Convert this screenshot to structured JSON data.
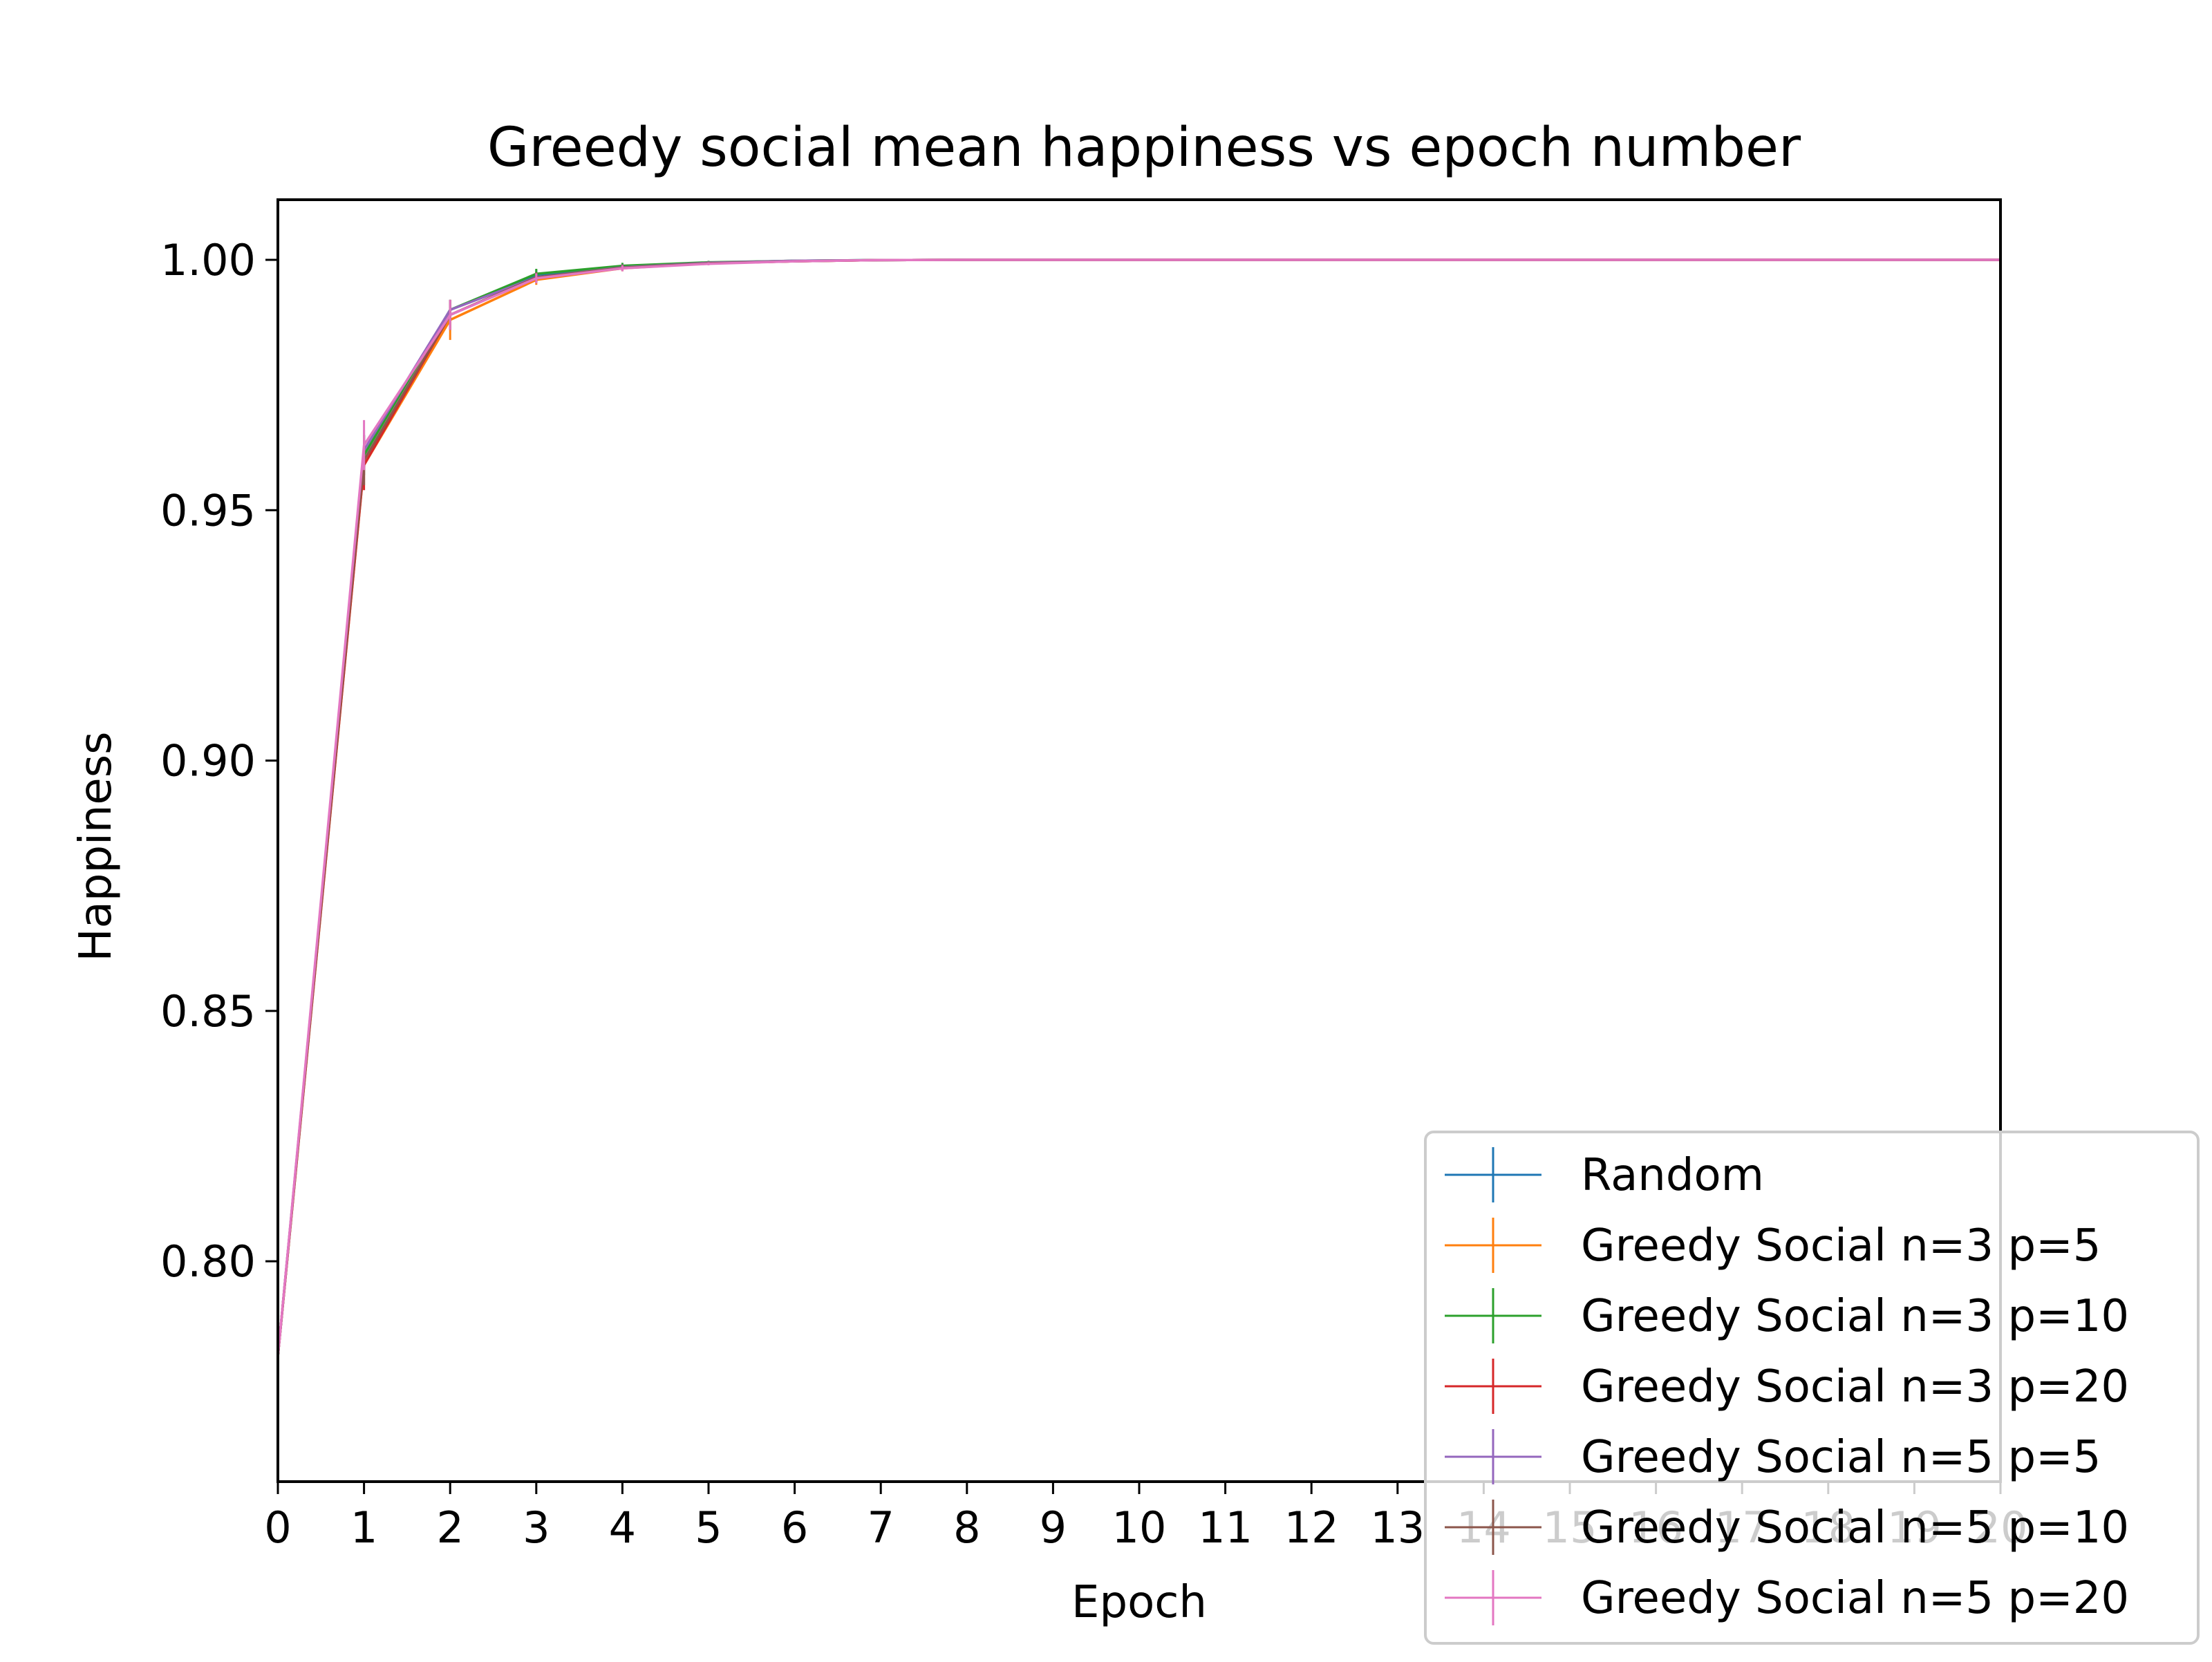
{
  "chart_data": {
    "type": "line",
    "title": "Greedy social mean happiness vs epoch number",
    "xlabel": "Epoch",
    "ylabel": "Happiness",
    "xlim": [
      0,
      20
    ],
    "ylim": [
      0.756,
      1.012
    ],
    "x_ticks": [
      "0",
      "1",
      "2",
      "3",
      "4",
      "5",
      "6",
      "7",
      "8",
      "9",
      "10",
      "11",
      "12",
      "13",
      "14",
      "15",
      "16",
      "17",
      "18",
      "19",
      "20"
    ],
    "y_ticks": [
      "0.80",
      "0.85",
      "0.90",
      "0.95",
      "1.00"
    ],
    "grid": false,
    "legend_position": "bottom-right",
    "x": [
      0,
      1,
      2,
      3,
      4,
      5,
      6,
      7,
      8,
      9,
      10,
      11,
      12,
      13,
      14,
      15,
      16,
      17,
      18,
      19,
      20
    ],
    "series": [
      {
        "name": "Random",
        "color": "#1f77b4",
        "values": [
          0.781,
          0.961,
          0.99,
          0.997,
          0.9985,
          0.9994,
          0.9998,
          0.99995,
          1.0,
          1.0,
          1.0,
          1.0,
          1.0,
          1.0,
          1.0,
          1.0,
          1.0,
          1.0,
          1.0,
          1.0,
          1.0
        ],
        "errors": [
          0,
          0.004,
          0.002,
          0.001,
          0.0006,
          0.0003,
          0.0002,
          0.0001,
          0,
          0,
          0,
          0,
          0,
          0,
          0,
          0,
          0,
          0,
          0,
          0,
          0
        ]
      },
      {
        "name": "Greedy Social n=3 p=5",
        "color": "#ff7f0e",
        "values": [
          0.781,
          0.959,
          0.988,
          0.996,
          0.9983,
          0.9993,
          0.9997,
          0.99995,
          1.0,
          1.0,
          1.0,
          1.0,
          1.0,
          1.0,
          1.0,
          1.0,
          1.0,
          1.0,
          1.0,
          1.0,
          1.0
        ],
        "errors": [
          0,
          0.004,
          0.004,
          0.001,
          0.0006,
          0.0003,
          0.0002,
          0.0001,
          0,
          0,
          0,
          0,
          0,
          0,
          0,
          0,
          0,
          0,
          0,
          0,
          0
        ]
      },
      {
        "name": "Greedy Social n=3 p=10",
        "color": "#2ca02c",
        "values": [
          0.781,
          0.961,
          0.99,
          0.9972,
          0.9988,
          0.9995,
          0.9998,
          0.99995,
          1.0,
          1.0,
          1.0,
          1.0,
          1.0,
          1.0,
          1.0,
          1.0,
          1.0,
          1.0,
          1.0,
          1.0,
          1.0
        ],
        "errors": [
          0,
          0.004,
          0.002,
          0.001,
          0.0006,
          0.0003,
          0.0002,
          0.0001,
          0,
          0,
          0,
          0,
          0,
          0,
          0,
          0,
          0,
          0,
          0,
          0,
          0
        ]
      },
      {
        "name": "Greedy Social n=3 p=20",
        "color": "#d62728",
        "values": [
          0.781,
          0.959,
          0.989,
          0.9965,
          0.9984,
          0.9993,
          0.9997,
          0.99995,
          1.0,
          1.0,
          1.0,
          1.0,
          1.0,
          1.0,
          1.0,
          1.0,
          1.0,
          1.0,
          1.0,
          1.0,
          1.0
        ],
        "errors": [
          0,
          0.005,
          0.003,
          0.001,
          0.0006,
          0.0003,
          0.0002,
          0.0001,
          0,
          0,
          0,
          0,
          0,
          0,
          0,
          0,
          0,
          0,
          0,
          0,
          0
        ]
      },
      {
        "name": "Greedy Social n=5 p=5",
        "color": "#9467bd",
        "values": [
          0.781,
          0.962,
          0.99,
          0.9965,
          0.9985,
          0.9994,
          0.9998,
          0.99995,
          1.0,
          1.0,
          1.0,
          1.0,
          1.0,
          1.0,
          1.0,
          1.0,
          1.0,
          1.0,
          1.0,
          1.0,
          1.0
        ],
        "errors": [
          0,
          0.004,
          0.002,
          0.001,
          0.0006,
          0.0003,
          0.0002,
          0.0001,
          0,
          0,
          0,
          0,
          0,
          0,
          0,
          0,
          0,
          0,
          0,
          0,
          0
        ]
      },
      {
        "name": "Greedy Social n=5 p=10",
        "color": "#8c564b",
        "values": [
          0.781,
          0.96,
          0.989,
          0.9965,
          0.9984,
          0.9993,
          0.9997,
          0.99995,
          1.0,
          1.0,
          1.0,
          1.0,
          1.0,
          1.0,
          1.0,
          1.0,
          1.0,
          1.0,
          1.0,
          1.0,
          1.0
        ],
        "errors": [
          0,
          0.005,
          0.003,
          0.001,
          0.0006,
          0.0003,
          0.0002,
          0.0001,
          0,
          0,
          0,
          0,
          0,
          0,
          0,
          0,
          0,
          0,
          0,
          0,
          0
        ]
      },
      {
        "name": "Greedy Social n=5 p=20",
        "color": "#e377c2",
        "values": [
          0.781,
          0.963,
          0.989,
          0.9963,
          0.9983,
          0.9992,
          0.9997,
          0.99995,
          1.0,
          1.0,
          1.0,
          1.0,
          1.0,
          1.0,
          1.0,
          1.0,
          1.0,
          1.0,
          1.0,
          1.0,
          1.0
        ],
        "errors": [
          0,
          0.005,
          0.003,
          0.001,
          0.0006,
          0.0003,
          0.0002,
          0.0001,
          0,
          0,
          0,
          0,
          0,
          0,
          0,
          0,
          0,
          0,
          0,
          0,
          0
        ]
      }
    ]
  }
}
